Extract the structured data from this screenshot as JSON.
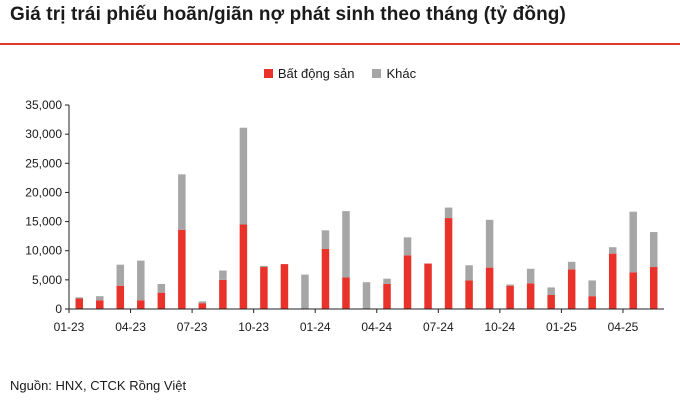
{
  "title": "Giá trị trái phiếu hoãn/giãn nợ phát sinh theo tháng (tỷ đồng)",
  "source": "Nguồn: HNX, CTCK Rồng Việt",
  "colors": {
    "accent": "#e03a2e",
    "real_estate": "#e8322a",
    "other": "#a6a6a6"
  },
  "chart_data": {
    "type": "bar",
    "stacked": true,
    "categories": [
      "01-23",
      "02-23",
      "03-23",
      "04-23",
      "05-23",
      "06-23",
      "07-23",
      "08-23",
      "09-23",
      "10-23",
      "11-23",
      "12-23",
      "01-24",
      "02-24",
      "03-24",
      "04-24",
      "05-24",
      "06-24",
      "07-24",
      "08-24",
      "09-24",
      "10-24",
      "11-24",
      "12-24",
      "01-25",
      "02-25",
      "03-25",
      "04-25",
      "05-25"
    ],
    "x_tick_labels": [
      "01-23",
      "04-23",
      "07-23",
      "10-23",
      "01-24",
      "04-24",
      "07-24",
      "10-24",
      "01-25",
      "04-25"
    ],
    "series": [
      {
        "name": "Bất động sản",
        "values": [
          1800,
          1500,
          4000,
          1500,
          2800,
          13600,
          1000,
          5000,
          14500,
          7200,
          7700,
          0,
          10300,
          5400,
          0,
          4300,
          9200,
          7800,
          15600,
          4900,
          7100,
          4000,
          4400,
          2400,
          6800,
          2200,
          9500,
          6300,
          7200
        ]
      },
      {
        "name": "Khác",
        "values": [
          200,
          700,
          3600,
          6800,
          1500,
          9500,
          300,
          1600,
          16600,
          200,
          0,
          5900,
          3200,
          11400,
          4600,
          900,
          3100,
          0,
          1800,
          2600,
          8200,
          200,
          2500,
          1300,
          1300,
          2700,
          1100,
          10400,
          6000
        ]
      }
    ],
    "ylim": [
      0,
      35000
    ],
    "y_ticks": [
      "0",
      "5,000",
      "10,000",
      "15,000",
      "20,000",
      "25,000",
      "30,000",
      "35,000"
    ],
    "grid": false,
    "legend_position": "top-center"
  }
}
